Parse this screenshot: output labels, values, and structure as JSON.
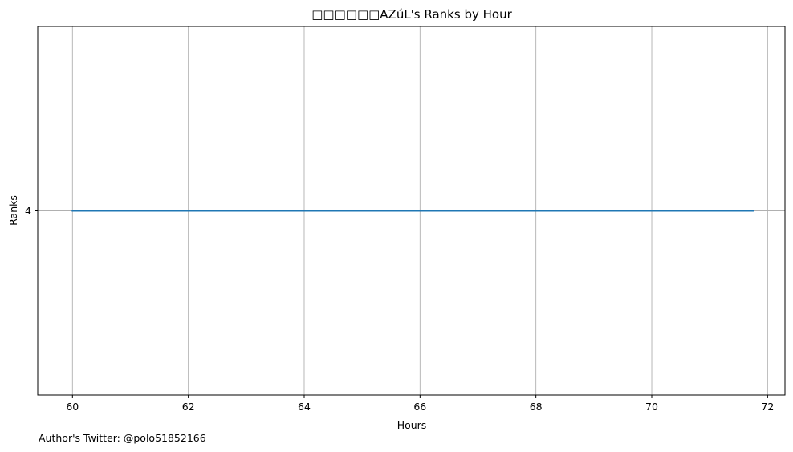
{
  "footer": {
    "author_note": "Author's Twitter: @polo51852166"
  },
  "colors": {
    "line": "#1f77b4",
    "grid": "#b0b0b0",
    "axes": "#000000",
    "background": "#ffffff"
  },
  "chart_data": {
    "type": "line",
    "title": "□□□□□□AZúL's Ranks by Hour",
    "xlabel": "Hours",
    "ylabel": "Ranks",
    "xlim": [
      59.4,
      72.3
    ],
    "ylim": [
      3.9,
      4.1
    ],
    "xticks": [
      60,
      62,
      64,
      66,
      68,
      70,
      72
    ],
    "yticks": [
      4
    ],
    "grid": true,
    "series": [
      {
        "x": [
          60,
          61,
          62,
          63,
          64,
          65,
          66,
          67,
          68,
          69,
          70,
          71,
          71.75
        ],
        "y": [
          4,
          4,
          4,
          4,
          4,
          4,
          4,
          4,
          4,
          4,
          4,
          4,
          4
        ]
      }
    ]
  }
}
